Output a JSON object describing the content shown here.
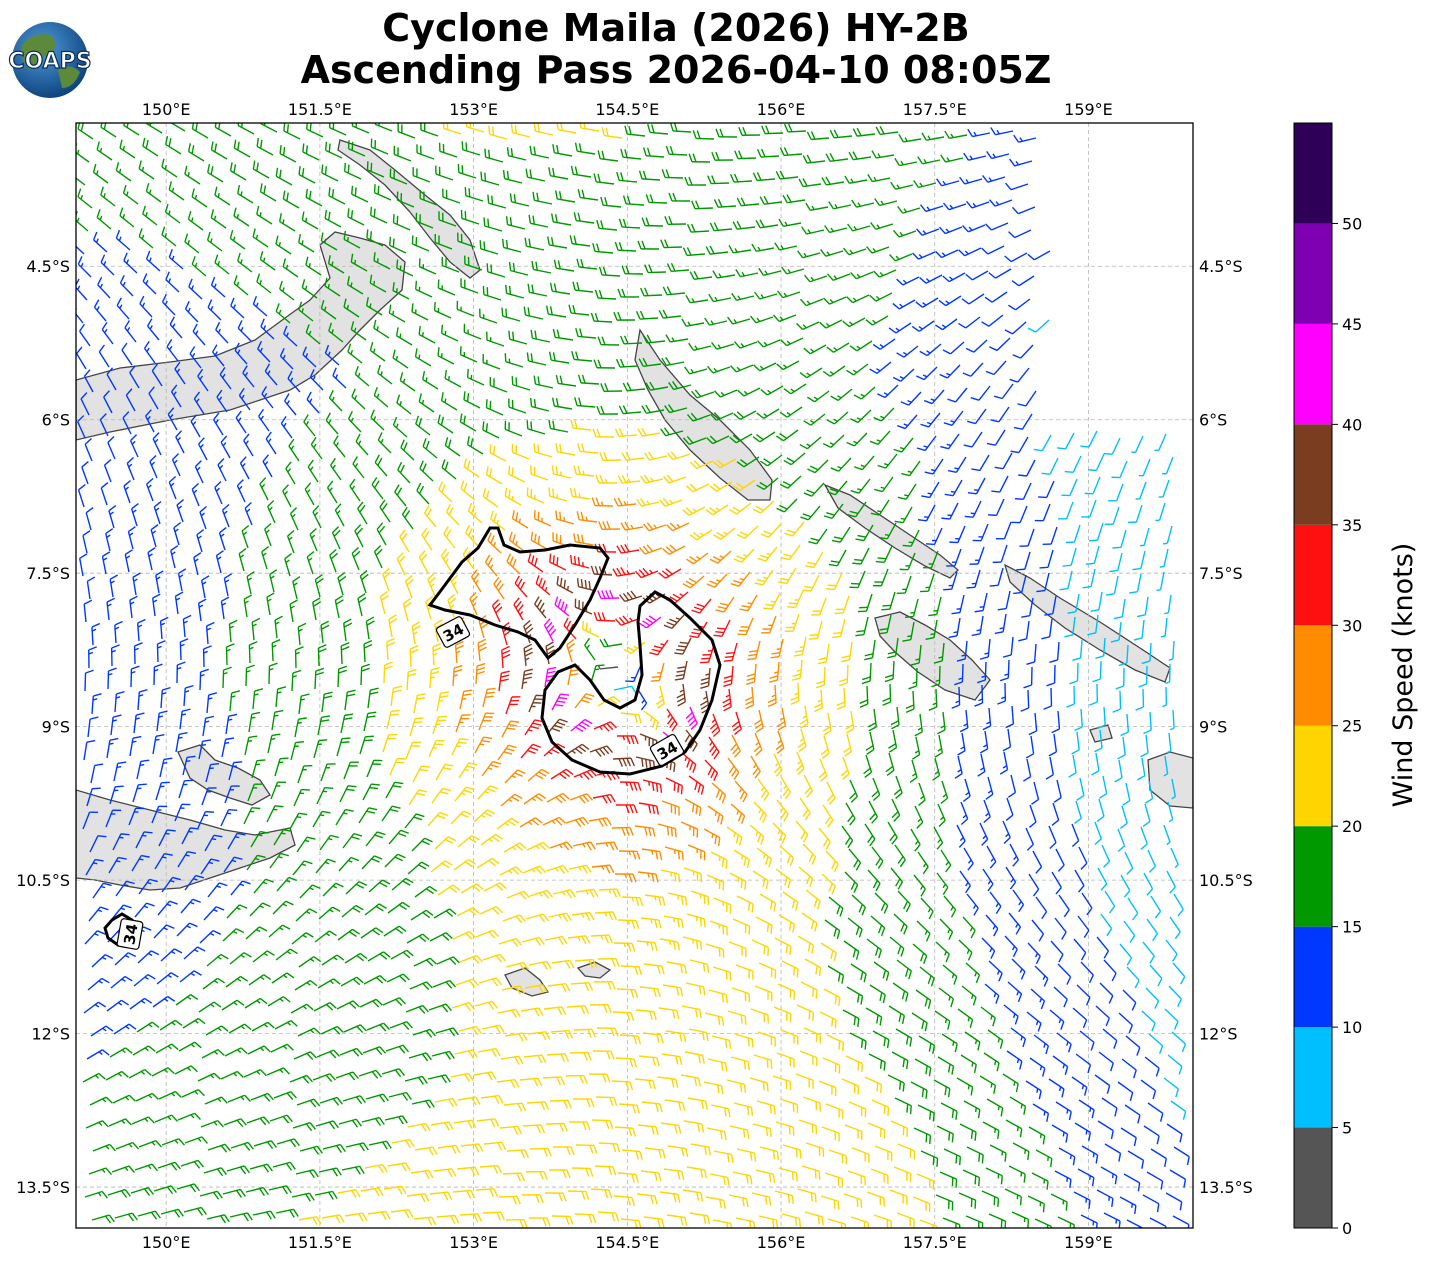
{
  "title": {
    "line1": "Cyclone Maila (2026) HY-2B",
    "line2": "Ascending Pass 2026-04-10 08:05Z"
  },
  "logo": {
    "text": "COAPS"
  },
  "map": {
    "lon_ticks": [
      "150°E",
      "151.5°E",
      "153°E",
      "154.5°E",
      "156°E",
      "157.5°E",
      "159°E"
    ],
    "lat_ticks": [
      "4.5°S",
      "6°S",
      "7.5°S",
      "9°S",
      "10.5°S",
      "12°S",
      "13.5°S"
    ],
    "extent": {
      "lon": [
        149.12,
        160.02
      ],
      "lat": [
        -3.1,
        -13.9
      ]
    },
    "cyclone_center": {
      "lon": 154.4,
      "lat": -8.5
    },
    "contour_label": "34",
    "barb_colors": [
      "#555555",
      "#00bfff",
      "#0038ff",
      "#009900",
      "#ffd500",
      "#ff8c00",
      "#ff1010",
      "#7b3d20",
      "#ff00ff",
      "#7f00b2",
      "#2e0058"
    ]
  },
  "colorbar": {
    "label": "Wind Speed (knots)",
    "ticks": [
      "0",
      "5",
      "10",
      "15",
      "20",
      "25",
      "30",
      "35",
      "40",
      "45",
      "50"
    ],
    "bins": [
      {
        "min": 0,
        "max": 5,
        "color": "#555555"
      },
      {
        "min": 5,
        "max": 10,
        "color": "#00bfff"
      },
      {
        "min": 10,
        "max": 15,
        "color": "#0038ff"
      },
      {
        "min": 15,
        "max": 20,
        "color": "#009900"
      },
      {
        "min": 20,
        "max": 25,
        "color": "#ffd500"
      },
      {
        "min": 25,
        "max": 30,
        "color": "#ff8c00"
      },
      {
        "min": 30,
        "max": 35,
        "color": "#ff1010"
      },
      {
        "min": 35,
        "max": 40,
        "color": "#7b3d20"
      },
      {
        "min": 40,
        "max": 45,
        "color": "#ff00ff"
      },
      {
        "min": 45,
        "max": 50,
        "color": "#7f00b2"
      },
      {
        "min": 50,
        "max": 55,
        "color": "#2e0058"
      }
    ]
  }
}
